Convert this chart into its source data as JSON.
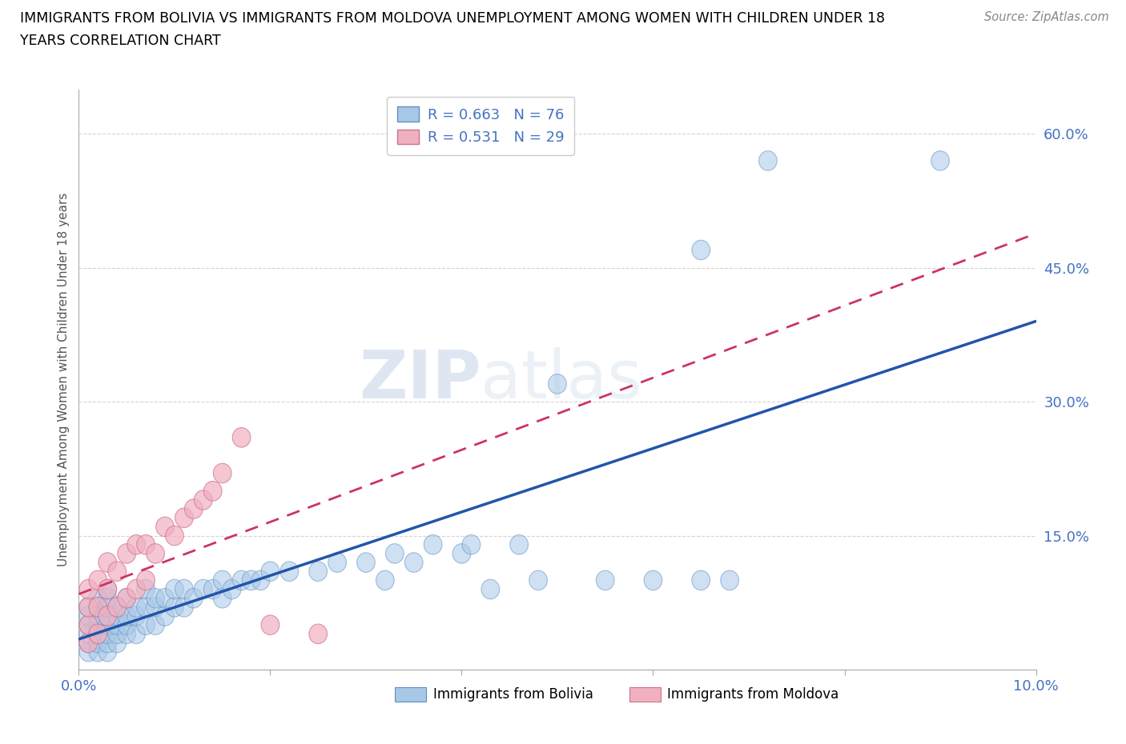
{
  "title_line1": "IMMIGRANTS FROM BOLIVIA VS IMMIGRANTS FROM MOLDOVA UNEMPLOYMENT AMONG WOMEN WITH CHILDREN UNDER 18",
  "title_line2": "YEARS CORRELATION CHART",
  "source_text": "Source: ZipAtlas.com",
  "ylabel": "Unemployment Among Women with Children Under 18 years",
  "xlim": [
    0.0,
    0.1
  ],
  "ylim": [
    0.0,
    0.65
  ],
  "xticks": [
    0.0,
    0.02,
    0.04,
    0.06,
    0.08,
    0.1
  ],
  "xticklabels": [
    "0.0%",
    "",
    "",
    "",
    "",
    "10.0%"
  ],
  "yticks": [
    0.0,
    0.15,
    0.3,
    0.45,
    0.6
  ],
  "yticklabels": [
    "",
    "15.0%",
    "30.0%",
    "45.0%",
    "60.0%"
  ],
  "bolivia_color": "#a8c8e8",
  "moldova_color": "#f0b0c0",
  "bolivia_edge_color": "#6090c0",
  "moldova_edge_color": "#d07090",
  "bolivia_line_color": "#2255aa",
  "moldova_line_color": "#cc3366",
  "legend_R_bolivia": "0.663",
  "legend_N_bolivia": "76",
  "legend_R_moldova": "0.531",
  "legend_N_moldova": "29",
  "bolivia_x": [
    0.001,
    0.001,
    0.001,
    0.001,
    0.001,
    0.001,
    0.002,
    0.002,
    0.002,
    0.002,
    0.002,
    0.002,
    0.002,
    0.003,
    0.003,
    0.003,
    0.003,
    0.003,
    0.003,
    0.003,
    0.003,
    0.004,
    0.004,
    0.004,
    0.004,
    0.004,
    0.005,
    0.005,
    0.005,
    0.005,
    0.006,
    0.006,
    0.006,
    0.007,
    0.007,
    0.007,
    0.008,
    0.008,
    0.008,
    0.009,
    0.009,
    0.01,
    0.01,
    0.011,
    0.011,
    0.012,
    0.013,
    0.014,
    0.015,
    0.015,
    0.016,
    0.017,
    0.018,
    0.019,
    0.02,
    0.022,
    0.025,
    0.027,
    0.03,
    0.032,
    0.033,
    0.035,
    0.037,
    0.04,
    0.041,
    0.043,
    0.046,
    0.048,
    0.05,
    0.055,
    0.06,
    0.065,
    0.065,
    0.068,
    0.072,
    0.09
  ],
  "bolivia_y": [
    0.02,
    0.03,
    0.04,
    0.05,
    0.06,
    0.07,
    0.02,
    0.03,
    0.04,
    0.05,
    0.06,
    0.07,
    0.08,
    0.02,
    0.03,
    0.04,
    0.05,
    0.06,
    0.07,
    0.08,
    0.09,
    0.03,
    0.04,
    0.05,
    0.06,
    0.07,
    0.04,
    0.05,
    0.06,
    0.08,
    0.04,
    0.06,
    0.07,
    0.05,
    0.07,
    0.09,
    0.05,
    0.07,
    0.08,
    0.06,
    0.08,
    0.07,
    0.09,
    0.07,
    0.09,
    0.08,
    0.09,
    0.09,
    0.08,
    0.1,
    0.09,
    0.1,
    0.1,
    0.1,
    0.11,
    0.11,
    0.11,
    0.12,
    0.12,
    0.1,
    0.13,
    0.12,
    0.14,
    0.13,
    0.14,
    0.09,
    0.14,
    0.1,
    0.32,
    0.1,
    0.1,
    0.1,
    0.47,
    0.1,
    0.57,
    0.57
  ],
  "moldova_x": [
    0.001,
    0.001,
    0.001,
    0.001,
    0.002,
    0.002,
    0.002,
    0.003,
    0.003,
    0.003,
    0.004,
    0.004,
    0.005,
    0.005,
    0.006,
    0.006,
    0.007,
    0.007,
    0.008,
    0.009,
    0.01,
    0.011,
    0.012,
    0.013,
    0.014,
    0.015,
    0.017,
    0.02,
    0.025
  ],
  "moldova_y": [
    0.03,
    0.05,
    0.07,
    0.09,
    0.04,
    0.07,
    0.1,
    0.06,
    0.09,
    0.12,
    0.07,
    0.11,
    0.08,
    0.13,
    0.09,
    0.14,
    0.1,
    0.14,
    0.13,
    0.16,
    0.15,
    0.17,
    0.18,
    0.19,
    0.2,
    0.22,
    0.26,
    0.05,
    0.04
  ],
  "watermark_zip": "ZIP",
  "watermark_atlas": "atlas",
  "background_color": "#ffffff",
  "grid_color": "#d0d0d0",
  "tick_color": "#4472c4",
  "legend_label_bolivia": "Immigrants from Bolivia",
  "legend_label_moldova": "Immigrants from Moldova"
}
